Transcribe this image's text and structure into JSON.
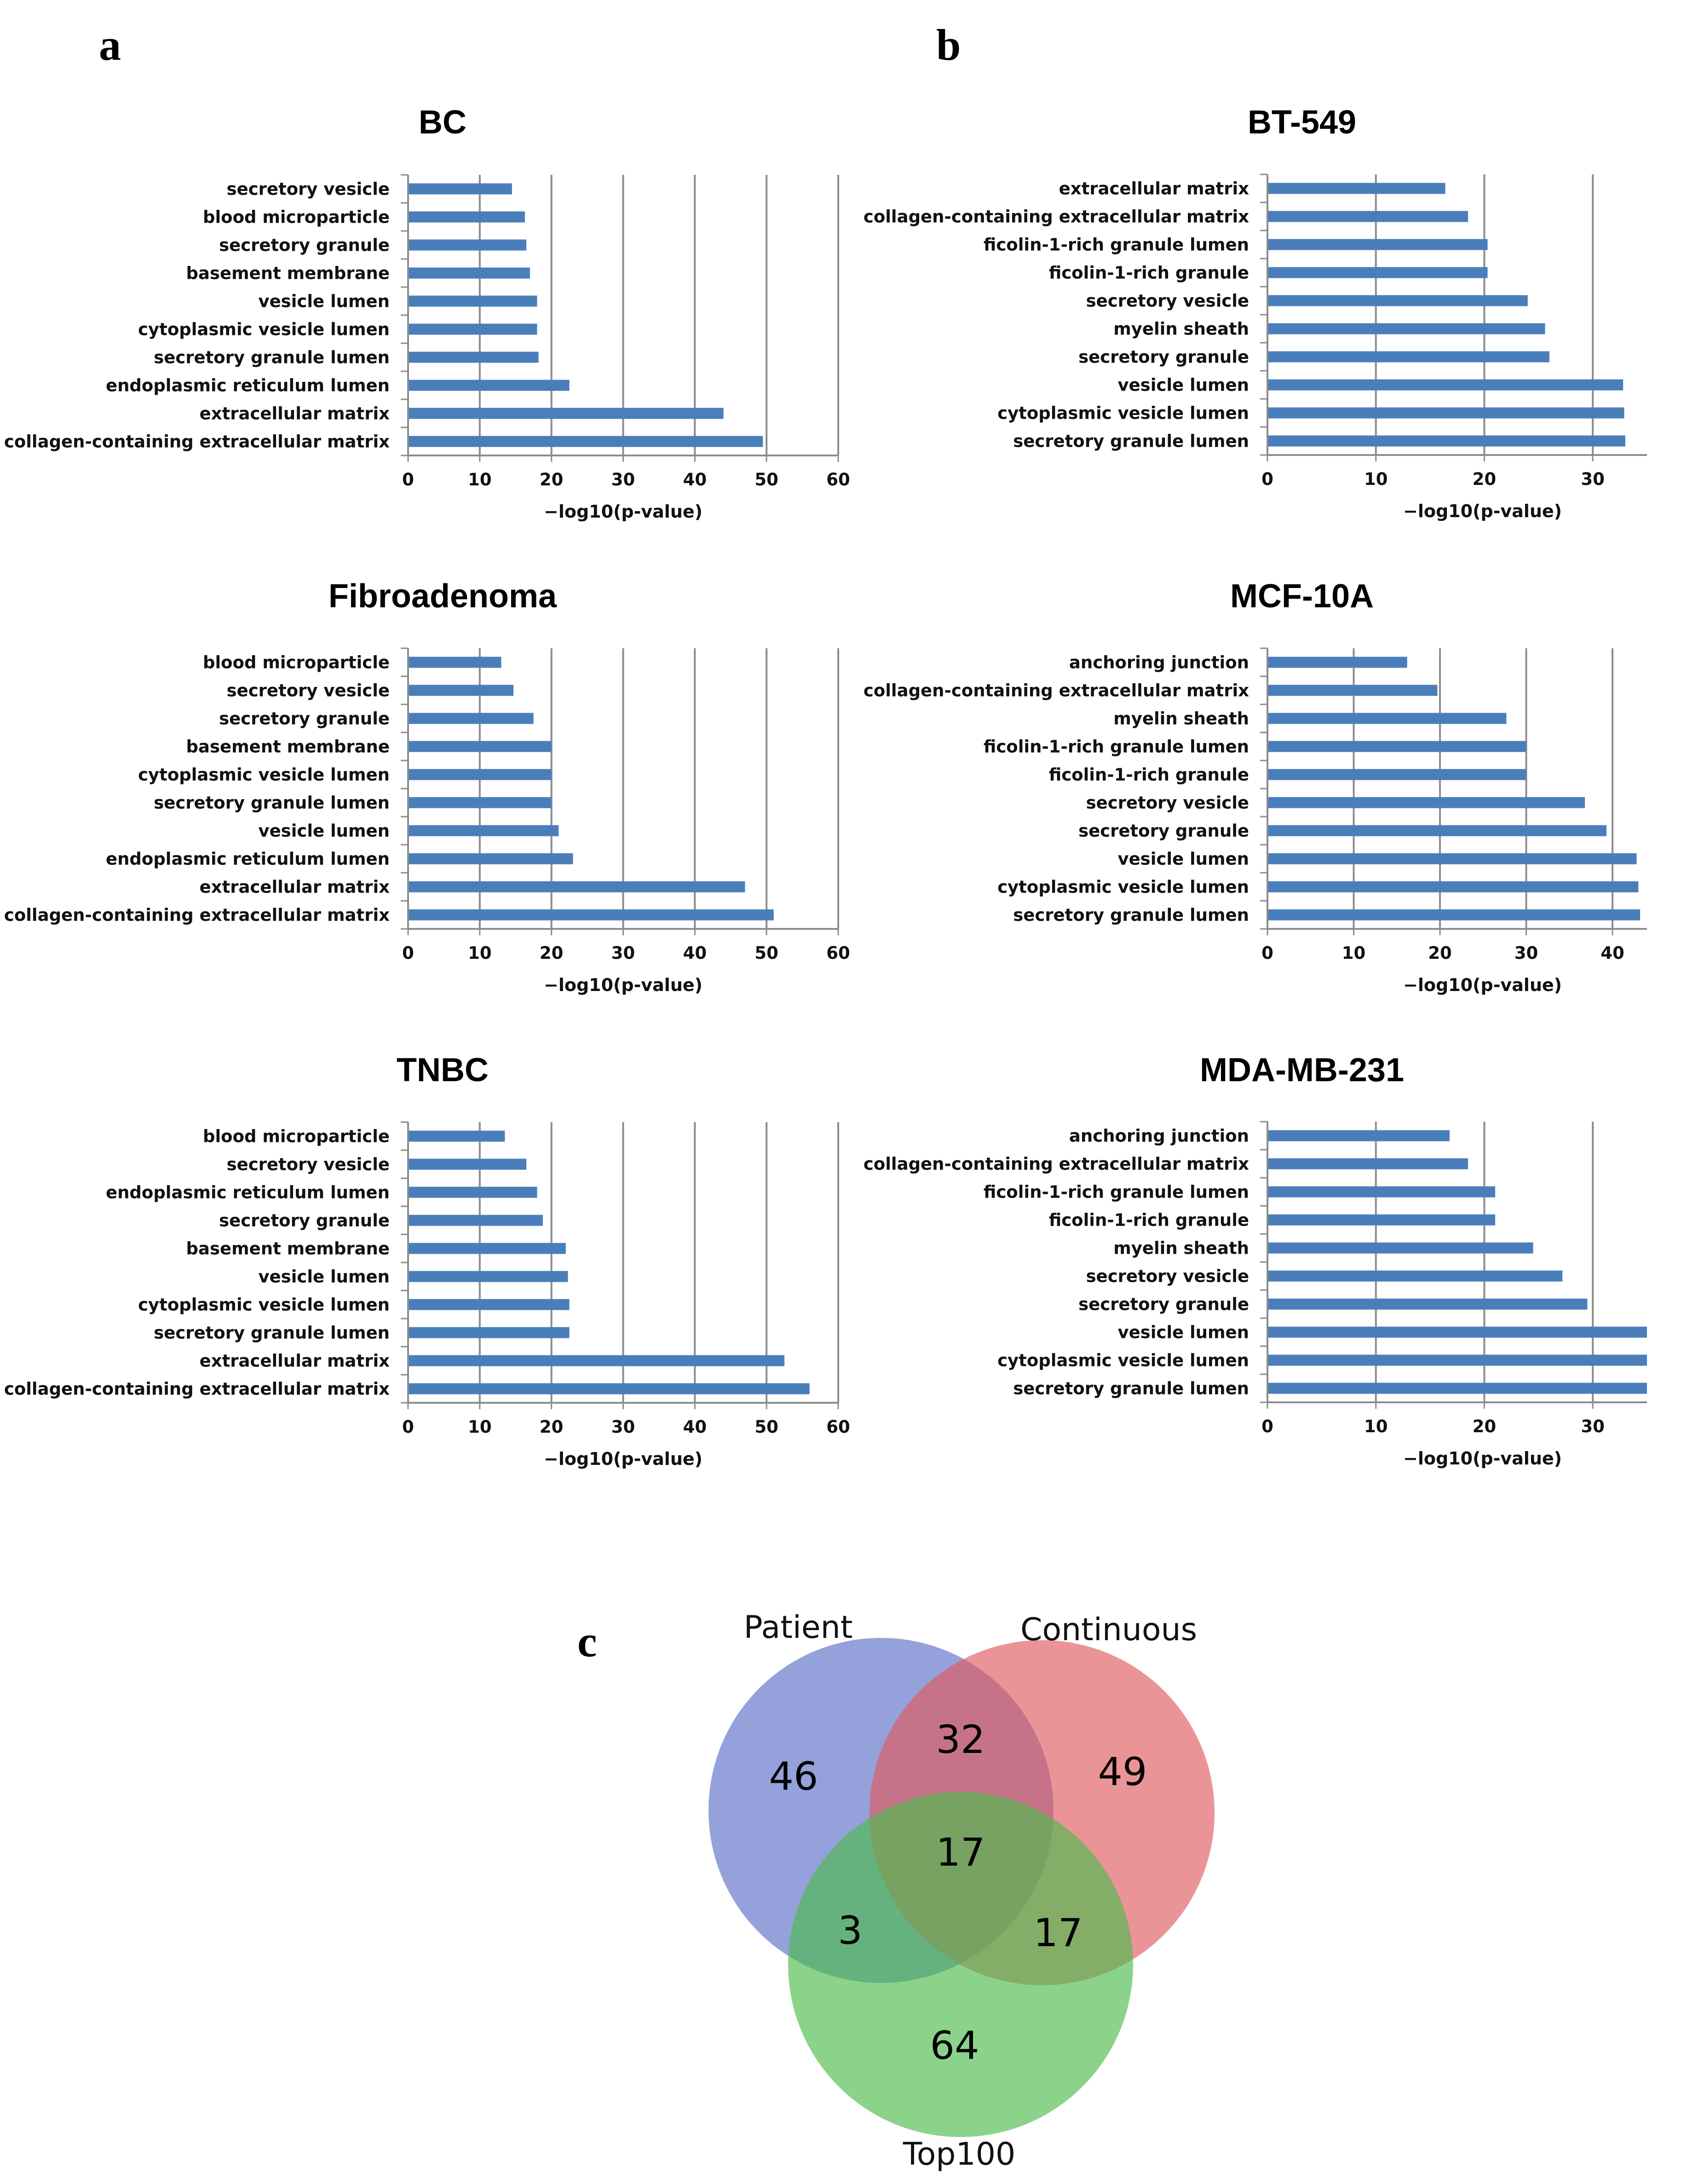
{
  "panels": {
    "a": "a",
    "b": "b",
    "c": "c"
  },
  "chart_data": [
    {
      "type": "bar",
      "orientation": "horizontal",
      "title": "BC",
      "xlabel": "−log10(p-value)",
      "xlim": [
        0,
        60
      ],
      "ticks": [
        0,
        10,
        20,
        30,
        40,
        50,
        60
      ],
      "grid": true,
      "color": "#4a7ebb",
      "categories": [
        "secretory vesicle",
        "blood microparticle",
        "secretory granule",
        "basement membrane",
        "vesicle lumen",
        "cytoplasmic vesicle lumen",
        "secretory granule lumen",
        "endoplasmic reticulum lumen",
        "extracellular matrix",
        "collagen-containing extracellular matrix"
      ],
      "values": [
        14.5,
        16.3,
        16.5,
        17.0,
        18.0,
        18.0,
        18.2,
        22.5,
        44.0,
        49.5
      ]
    },
    {
      "type": "bar",
      "orientation": "horizontal",
      "title": "BT-549",
      "xlabel": "−log10(p-value)",
      "xlim": [
        0,
        35
      ],
      "ticks": [
        0,
        10,
        20,
        30
      ],
      "grid": true,
      "color": "#4a7ebb",
      "categories": [
        "extracellular matrix",
        "collagen-containing extracellular matrix",
        "ficolin-1-rich granule lumen",
        "ficolin-1-rich granule",
        "secretory vesicle",
        "myelin sheath",
        "secretory granule",
        "vesicle lumen",
        "cytoplasmic vesicle lumen",
        "secretory granule lumen"
      ],
      "values": [
        16.4,
        18.5,
        20.3,
        20.3,
        24.0,
        25.6,
        26.0,
        32.8,
        32.9,
        33.0
      ]
    },
    {
      "type": "bar",
      "orientation": "horizontal",
      "title": "Fibroadenoma",
      "xlabel": "−log10(p-value)",
      "xlim": [
        0,
        60
      ],
      "ticks": [
        0,
        10,
        20,
        30,
        40,
        50,
        60
      ],
      "grid": true,
      "color": "#4a7ebb",
      "categories": [
        "blood microparticle",
        "secretory vesicle",
        "secretory granule",
        "basement membrane",
        "cytoplasmic vesicle lumen",
        "secretory granule lumen",
        "vesicle lumen",
        "endoplasmic reticulum lumen",
        "extracellular matrix",
        "collagen-containing extracellular matrix"
      ],
      "values": [
        13.0,
        14.7,
        17.5,
        20.0,
        20.0,
        20.0,
        21.0,
        23.0,
        47.0,
        51.0
      ]
    },
    {
      "type": "bar",
      "orientation": "horizontal",
      "title": "MCF-10A",
      "xlabel": "−log10(p-value)",
      "xlim": [
        0,
        44
      ],
      "ticks": [
        0,
        10,
        20,
        30,
        40
      ],
      "grid": true,
      "color": "#4a7ebb",
      "categories": [
        "anchoring junction",
        "collagen-containing extracellular matrix",
        "myelin sheath",
        "ficolin-1-rich granule lumen",
        "ficolin-1-rich granule",
        "secretory vesicle",
        "secretory granule",
        "vesicle lumen",
        "cytoplasmic vesicle lumen",
        "secretory granule lumen"
      ],
      "values": [
        16.2,
        19.7,
        27.7,
        30.0,
        30.0,
        36.8,
        39.3,
        42.8,
        43.0,
        43.2
      ]
    },
    {
      "type": "bar",
      "orientation": "horizontal",
      "title": "TNBC",
      "xlabel": "−log10(p-value)",
      "xlim": [
        0,
        60
      ],
      "ticks": [
        0,
        10,
        20,
        30,
        40,
        50,
        60
      ],
      "grid": true,
      "color": "#4a7ebb",
      "categories": [
        "blood microparticle",
        "secretory vesicle",
        "endoplasmic reticulum lumen",
        "secretory granule",
        "basement membrane",
        "vesicle lumen",
        "cytoplasmic vesicle lumen",
        "secretory granule lumen",
        "extracellular matrix",
        "collagen-containing extracellular matrix"
      ],
      "values": [
        13.5,
        16.5,
        18.0,
        18.8,
        22.0,
        22.3,
        22.5,
        22.5,
        52.5,
        56.0
      ]
    },
    {
      "type": "bar",
      "orientation": "horizontal",
      "title": "MDA-MB-231",
      "xlabel": "−log10(p-value)",
      "xlim": [
        0,
        35
      ],
      "ticks": [
        0,
        10,
        20,
        30
      ],
      "grid": true,
      "color": "#4a7ebb",
      "categories": [
        "anchoring junction",
        "collagen-containing extracellular matrix",
        "ficolin-1-rich granule lumen",
        "ficolin-1-rich granule",
        "myelin sheath",
        "secretory vesicle",
        "secretory granule",
        "vesicle lumen",
        "cytoplasmic vesicle lumen",
        "secretory granule lumen"
      ],
      "values": [
        16.8,
        18.5,
        21.0,
        21.0,
        24.5,
        27.2,
        29.5,
        35.0,
        35.0,
        35.0
      ]
    }
  ],
  "venn": {
    "sets": [
      {
        "name": "Patient",
        "color": "#5a6fc6"
      },
      {
        "name": "Continuous",
        "color": "#e05a5f"
      },
      {
        "name": "Top100",
        "color": "#4dbb4d"
      }
    ],
    "regions": {
      "patient_only": "46",
      "continuous_only": "49",
      "top100_only": "64",
      "patient_continuous": "32",
      "patient_top100": "3",
      "continuous_top100": "17",
      "all_three": "17"
    }
  }
}
